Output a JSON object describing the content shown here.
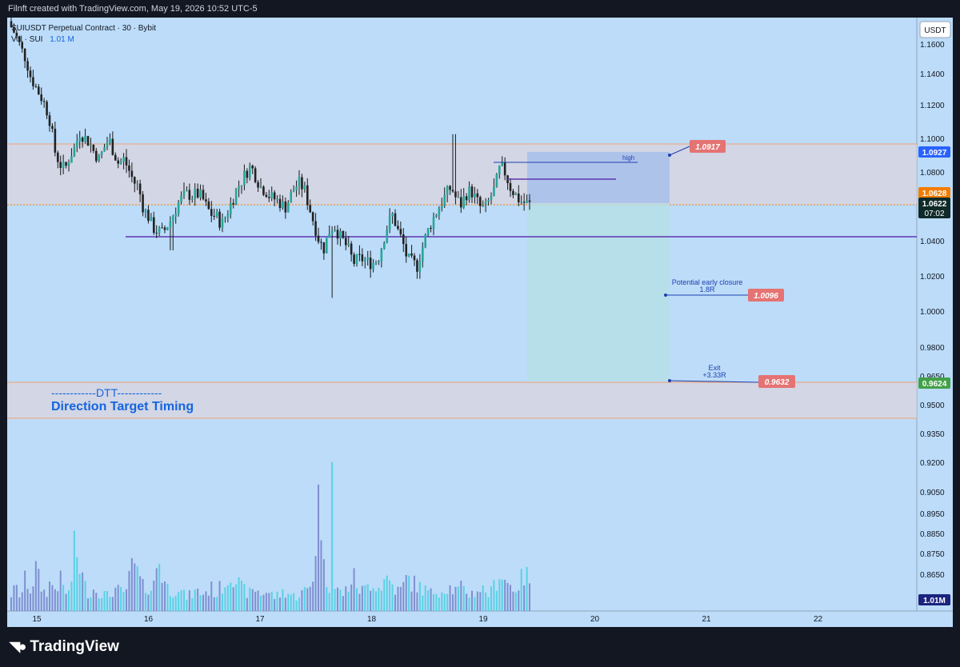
{
  "header": {
    "attribution": "Filnft created with TradingView.com, May 19, 2026 10:52 UTC-5"
  },
  "legend": {
    "symbol": "SUIUSDT Perpetual Contract · 30 · Bybit",
    "volume_label": "Vol · SUI",
    "volume_value": "1.01 M"
  },
  "currency_button": "USDT",
  "footer": {
    "logo_text": "TradingView"
  },
  "colors": {
    "background": "#bcdcf9",
    "bull": "#26a69a",
    "bear": "#222222",
    "volume_bull": "#4dd0e1",
    "volume_bear": "#7986cb",
    "level_line": "#5e35b1",
    "zone_fill": "#d9d4dd",
    "zone_border": "#f3a06d"
  },
  "dtt": {
    "line1": "------------DTT------------",
    "line2": "Direction Target Timing"
  },
  "annotations": {
    "high_label": "high",
    "early_closure_label": "Potential early closure",
    "early_closure_r": "1.8R",
    "exit_label": "Exit",
    "exit_r": "+3.33R",
    "target1_price": "1.0917",
    "target2_price": "1.0096",
    "target3_price": "0.9632"
  },
  "chart_data": {
    "type": "candlestick",
    "symbol": "SUIUSDT",
    "timeframe": "30",
    "x_ticks": [
      "15",
      "16",
      "17",
      "18",
      "19",
      "20",
      "21",
      "22"
    ],
    "y_ticks": [
      "1.1600",
      "1.1400",
      "1.1200",
      "1.1000",
      "1.0800",
      "1.0600",
      "1.0400",
      "1.0200",
      "1.0000",
      "0.9800",
      "0.9650",
      "0.9500",
      "0.9350",
      "0.9200",
      "0.9050",
      "0.8950",
      "0.8850",
      "0.8750",
      "0.8650"
    ],
    "price_badges": [
      {
        "text": "1.0927",
        "color": "#2962ff"
      },
      {
        "text": "1.0628",
        "color": "#f57c00"
      },
      {
        "text": "1.0622",
        "sub": "07:02",
        "color": "#0f2a28"
      },
      {
        "text": "0.9624",
        "color": "#43a047"
      },
      {
        "text": "1.01M",
        "color": "#1a237e"
      }
    ],
    "close_trace": [
      1.172,
      1.166,
      1.158,
      1.15,
      1.138,
      1.132,
      1.126,
      1.12,
      1.11,
      1.092,
      1.085,
      1.082,
      1.09,
      1.095,
      1.104,
      1.101,
      1.098,
      1.092,
      1.088,
      1.095,
      1.1,
      1.092,
      1.085,
      1.088,
      1.082,
      1.075,
      1.072,
      1.06,
      1.055,
      1.048,
      1.046,
      1.045,
      1.05,
      1.055,
      1.062,
      1.066,
      1.068,
      1.067,
      1.068,
      1.066,
      1.06,
      1.056,
      1.055,
      1.05,
      1.056,
      1.063,
      1.07,
      1.075,
      1.08,
      1.084,
      1.078,
      1.072,
      1.07,
      1.066,
      1.065,
      1.063,
      1.06,
      1.066,
      1.072,
      1.074,
      1.07,
      1.06,
      1.05,
      1.04,
      1.036,
      1.046,
      1.05,
      1.044,
      1.04,
      1.035,
      1.028,
      1.03,
      1.03,
      1.028,
      1.028,
      1.03,
      1.04,
      1.05,
      1.056,
      1.047,
      1.04,
      1.03,
      1.028,
      1.026,
      1.036,
      1.045,
      1.052,
      1.058,
      1.063,
      1.068,
      1.072,
      1.065,
      1.062,
      1.068,
      1.07,
      1.065,
      1.06,
      1.06,
      1.066,
      1.072,
      1.084,
      1.08,
      1.072,
      1.068,
      1.064,
      1.063,
      1.062
    ],
    "volume_trace": [
      0.12,
      0.16,
      0.1,
      0.24,
      0.14,
      0.3,
      0.18,
      0.12,
      0.2,
      0.16,
      0.22,
      0.14,
      0.12,
      0.45,
      0.32,
      0.18,
      0.12,
      0.16,
      0.14,
      0.12,
      0.1,
      0.16,
      0.14,
      0.12,
      0.2,
      0.35,
      0.24,
      0.16,
      0.18,
      0.14,
      0.4,
      0.24,
      0.16,
      0.14,
      0.18,
      0.12,
      0.1,
      0.12,
      0.14,
      0.12,
      0.14,
      0.16,
      0.12,
      0.18,
      0.2,
      0.3,
      0.22,
      0.16,
      0.14,
      0.12,
      0.16,
      0.12,
      0.14,
      0.12,
      0.1,
      0.12,
      0.14,
      0.12,
      0.1,
      0.12,
      0.14,
      0.16,
      0.3,
      1.0,
      0.24,
      0.2,
      0.16,
      0.14,
      0.12,
      0.18,
      0.24,
      0.16,
      0.14,
      0.18,
      0.22,
      0.16,
      0.2,
      0.24,
      0.18,
      0.14,
      0.16,
      0.24,
      0.2,
      0.18,
      0.16,
      0.14,
      0.12,
      0.16,
      0.14,
      0.18,
      0.16,
      0.14,
      0.16,
      0.14,
      0.12,
      0.14,
      0.16,
      0.14,
      0.12,
      0.2,
      0.28,
      0.22,
      0.18,
      0.16,
      0.2,
      0.26,
      0.22
    ],
    "horizontal_lines": [
      {
        "price": 1.0985,
        "role": "zone-top"
      },
      {
        "price": 1.0612,
        "role": "entry"
      },
      {
        "price": 1.0432,
        "role": "level"
      },
      {
        "price": 0.9628,
        "role": "zone-bottom"
      },
      {
        "price": 0.9428,
        "role": "zone-bottom-2"
      }
    ],
    "position_tool": {
      "target_top": 1.0927,
      "entry": 1.0622,
      "stop": 0.9624
    },
    "grid": false
  }
}
